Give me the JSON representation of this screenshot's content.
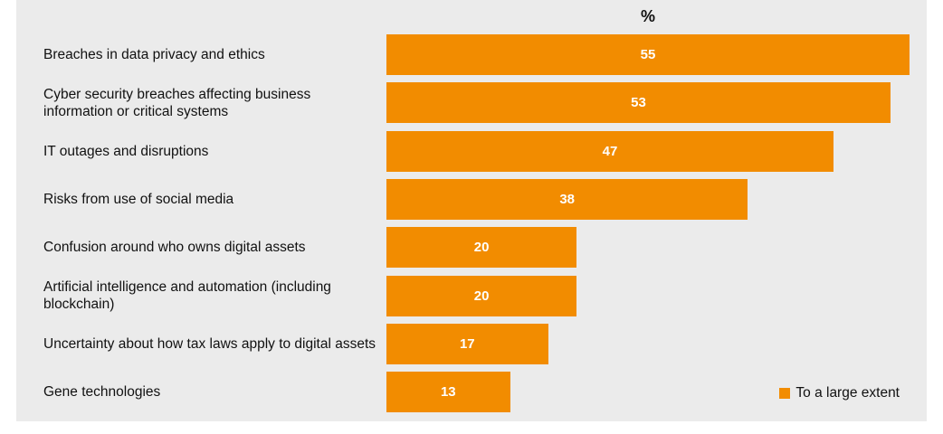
{
  "chart_data": {
    "type": "bar",
    "orientation": "horizontal",
    "unit_label": "%",
    "categories": [
      "Breaches in data privacy and ethics",
      "Cyber security breaches affecting business information or critical systems",
      "IT outages and disruptions",
      "Risks from use of social media",
      "Confusion around who owns digital assets",
      "Artificial intelligence and automation (including blockchain)",
      "Uncertainty about how tax laws apply to digital assets",
      "Gene technologies"
    ],
    "series": [
      {
        "name": "To a large extent",
        "values": [
          55,
          53,
          47,
          38,
          20,
          20,
          17,
          13
        ]
      }
    ],
    "legend": {
      "label": "To a large extent",
      "position": "bottom-right"
    },
    "colors": {
      "bar": "#f28c00",
      "background": "#ebebeb"
    }
  }
}
